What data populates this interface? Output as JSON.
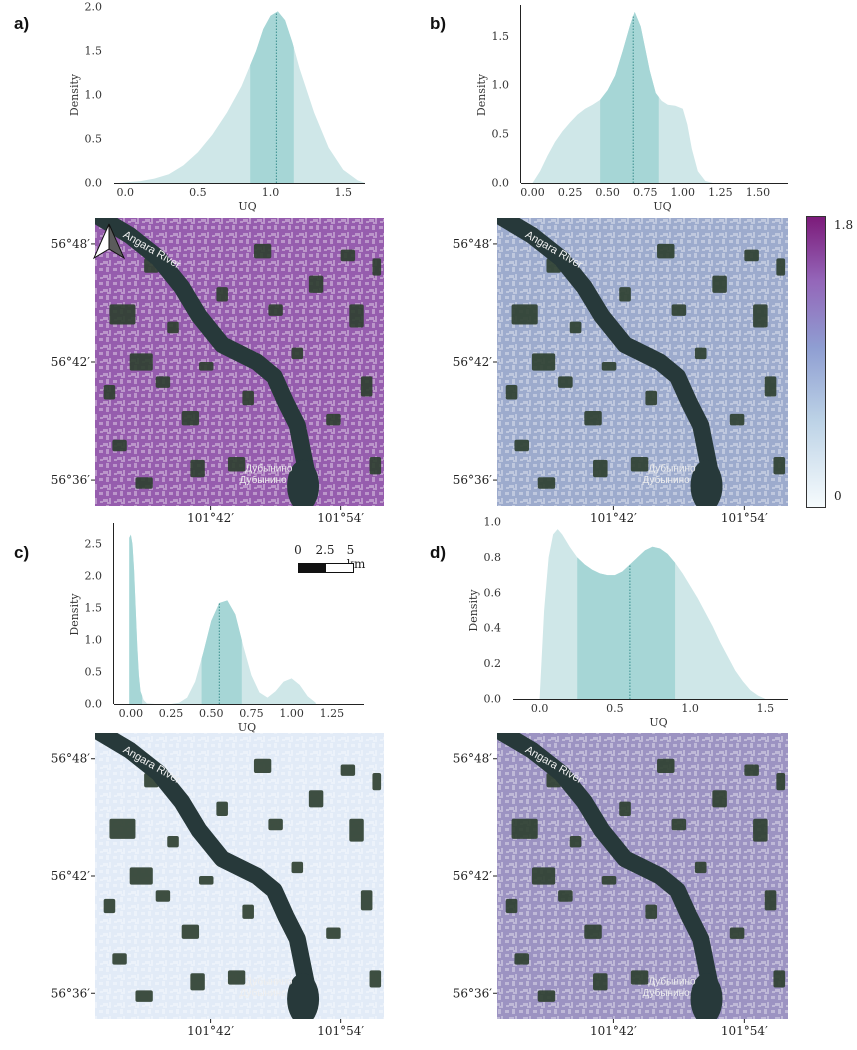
{
  "panels": [
    {
      "label": "a)"
    },
    {
      "label": "b)"
    },
    {
      "label": "c)"
    },
    {
      "label": "d)"
    }
  ],
  "chart_data": [
    {
      "type": "area",
      "panel": "a)",
      "xlabel": "UQ",
      "ylabel": "Density",
      "xlim": [
        -0.05,
        1.65
      ],
      "ylim": [
        0,
        2.0
      ],
      "xticks": [
        "0.0",
        "0.5",
        "1.0",
        "1.5"
      ],
      "yticks": [
        "0.0",
        "0.5",
        "1.0",
        "1.5",
        "2.0"
      ],
      "x": [
        -0.05,
        0.1,
        0.2,
        0.3,
        0.4,
        0.5,
        0.6,
        0.7,
        0.8,
        0.9,
        0.95,
        1.0,
        1.05,
        1.1,
        1.15,
        1.2,
        1.3,
        1.4,
        1.5,
        1.6,
        1.65
      ],
      "y": [
        0.0,
        0.02,
        0.05,
        0.1,
        0.2,
        0.35,
        0.55,
        0.8,
        1.1,
        1.5,
        1.75,
        1.9,
        1.95,
        1.85,
        1.6,
        1.3,
        0.8,
        0.4,
        0.15,
        0.03,
        0.0
      ],
      "shaded_interval": [
        0.86,
        1.16
      ],
      "median": 1.04,
      "fill_color": "#cfe7e8",
      "interval_color": "#a6d6d6",
      "median_color": "#3a8f8e"
    },
    {
      "type": "area",
      "panel": "b)",
      "xlabel": "UQ",
      "ylabel": "Density",
      "xlim": [
        -0.05,
        1.7
      ],
      "ylim": [
        0,
        1.8
      ],
      "xticks": [
        "0.00",
        "0.25",
        "0.50",
        "0.75",
        "1.00",
        "1.25",
        "1.50"
      ],
      "yticks": [
        "0.0",
        "0.5",
        "1.0",
        "1.5"
      ],
      "x": [
        0.0,
        0.05,
        0.1,
        0.15,
        0.2,
        0.25,
        0.3,
        0.35,
        0.4,
        0.45,
        0.5,
        0.55,
        0.6,
        0.65,
        0.68,
        0.72,
        0.78,
        0.82,
        0.86,
        0.9,
        0.95,
        1.0,
        1.03,
        1.06,
        1.1,
        1.15,
        1.2
      ],
      "y": [
        0.0,
        0.12,
        0.28,
        0.42,
        0.53,
        0.62,
        0.7,
        0.76,
        0.8,
        0.85,
        0.95,
        1.1,
        1.35,
        1.62,
        1.75,
        1.6,
        1.15,
        0.92,
        0.84,
        0.8,
        0.79,
        0.76,
        0.6,
        0.35,
        0.12,
        0.02,
        0.0
      ],
      "shaded_interval": [
        0.45,
        0.84
      ],
      "median": 0.67,
      "fill_color": "#cfe7e8",
      "interval_color": "#a6d6d6",
      "median_color": "#3a8f8e"
    },
    {
      "type": "area",
      "panel": "c)",
      "xlabel": "UQ",
      "ylabel": "Density",
      "xlim": [
        -0.08,
        1.45
      ],
      "ylim": [
        0,
        2.8
      ],
      "xticks": [
        "0.00",
        "0.25",
        "0.50",
        "0.75",
        "1.00",
        "1.25"
      ],
      "yticks": [
        "0.0",
        "0.5",
        "1.0",
        "1.5",
        "2.0",
        "2.5"
      ],
      "x": [
        -0.01,
        0.0,
        0.01,
        0.02,
        0.03,
        0.04,
        0.05,
        0.06,
        0.08,
        0.1,
        0.15,
        0.2,
        0.25,
        0.3,
        0.35,
        0.4,
        0.45,
        0.5,
        0.55,
        0.6,
        0.65,
        0.7,
        0.75,
        0.8,
        0.85,
        0.9,
        0.95,
        1.0,
        1.05,
        1.1,
        1.15
      ],
      "y": [
        2.6,
        2.65,
        2.5,
        2.1,
        1.5,
        0.9,
        0.45,
        0.2,
        0.06,
        0.01,
        0.0,
        0.0,
        0.0,
        0.02,
        0.1,
        0.35,
        0.8,
        1.3,
        1.58,
        1.62,
        1.4,
        0.9,
        0.45,
        0.18,
        0.1,
        0.2,
        0.35,
        0.4,
        0.3,
        0.12,
        0.02
      ],
      "shaded_interval": [
        0.44,
        0.69
      ],
      "shaded_interval_2": [
        -0.01,
        0.07
      ],
      "median": 0.55,
      "fill_color": "#cfe7e8",
      "interval_color": "#a6d6d6",
      "median_color": "#3a8f8e"
    },
    {
      "type": "area",
      "panel": "d)",
      "xlabel": "UQ",
      "ylabel": "Density",
      "xlim": [
        -0.15,
        1.65
      ],
      "ylim": [
        0,
        1.0
      ],
      "xticks": [
        "0.0",
        "0.5",
        "1.0",
        "1.5"
      ],
      "yticks": [
        "0.0",
        "0.2",
        "0.4",
        "0.6",
        "0.8",
        "1.0"
      ],
      "x": [
        0.0,
        0.03,
        0.06,
        0.09,
        0.12,
        0.15,
        0.2,
        0.25,
        0.3,
        0.35,
        0.4,
        0.45,
        0.5,
        0.55,
        0.6,
        0.65,
        0.7,
        0.75,
        0.8,
        0.85,
        0.9,
        0.95,
        1.0,
        1.05,
        1.1,
        1.15,
        1.2,
        1.25,
        1.3,
        1.35,
        1.4,
        1.45,
        1.5
      ],
      "y": [
        0.0,
        0.5,
        0.8,
        0.93,
        0.96,
        0.93,
        0.86,
        0.8,
        0.76,
        0.73,
        0.71,
        0.7,
        0.7,
        0.72,
        0.76,
        0.8,
        0.84,
        0.86,
        0.85,
        0.82,
        0.77,
        0.71,
        0.64,
        0.57,
        0.49,
        0.41,
        0.32,
        0.24,
        0.16,
        0.1,
        0.05,
        0.02,
        0.0
      ],
      "shaded_interval": [
        0.25,
        0.9
      ],
      "median": 0.6,
      "fill_color": "#cfe7e8",
      "interval_color": "#a6d6d6",
      "median_color": "#3a8f8e"
    }
  ],
  "maps": {
    "lat_labels": [
      "56°48′",
      "56°42′",
      "56°36′"
    ],
    "lon_labels": [
      "101°42′",
      "101°54′"
    ],
    "river_label": "Angara River",
    "town_label_1": "Дубынино",
    "town_label_2": "Дубынино",
    "tints": [
      "#9a5ab5",
      "#a6b4e0",
      "#e2ebf7",
      "#a99adb"
    ],
    "tint_opacity": [
      0.62,
      0.55,
      0.72,
      0.5
    ]
  },
  "colorbar": {
    "max_label": "1.8",
    "min_label": "0",
    "colors": [
      "#f6fbfd",
      "#bcd2e6",
      "#8f9ed2",
      "#9466b9",
      "#7c1b7a"
    ]
  },
  "scalebar": {
    "labels": [
      "0",
      "2.5",
      "5 km"
    ]
  }
}
